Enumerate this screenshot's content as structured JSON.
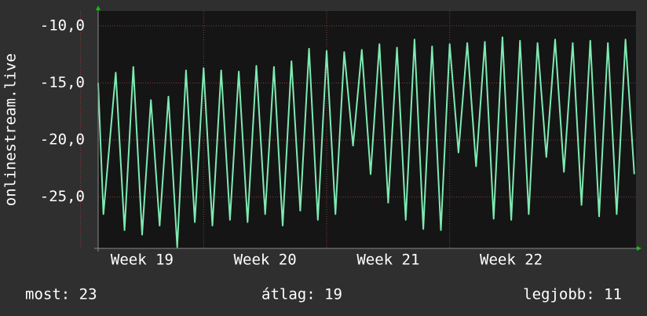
{
  "chart_data": {
    "type": "line",
    "y_label": "onlinestream.live",
    "xlim": [
      0,
      30.6
    ],
    "xticks": [
      {
        "value": 2.5,
        "label": "Week 19"
      },
      {
        "value": 9.5,
        "label": "Week 20"
      },
      {
        "value": 16.5,
        "label": "Week 21"
      },
      {
        "value": 23.5,
        "label": "Week 22"
      }
    ],
    "ylim": [
      -29.5,
      -8.7
    ],
    "yticks": [
      {
        "value": -10,
        "label": "-10,0"
      },
      {
        "value": -15,
        "label": "-15,0"
      },
      {
        "value": -20,
        "label": "-20,0"
      },
      {
        "value": -25,
        "label": "-25,0"
      }
    ],
    "grid": true,
    "color": "#7eeab2",
    "x": [
      0,
      0.3,
      1,
      1.5,
      2,
      2.5,
      3,
      3.5,
      4,
      4.5,
      5,
      5.5,
      6,
      6.5,
      7,
      7.5,
      8,
      8.5,
      9,
      9.5,
      10,
      10.5,
      11,
      11.5,
      12,
      12.5,
      13,
      13.5,
      14,
      14.5,
      15,
      15.5,
      16,
      16.5,
      17,
      17.5,
      18,
      18.5,
      19,
      19.5,
      20,
      20.5,
      21,
      21.5,
      22,
      22.5,
      23,
      23.5,
      24,
      24.5,
      25,
      25.5,
      26,
      26.5,
      27,
      27.5,
      28,
      28.5,
      29,
      29.5,
      30,
      30.5
    ],
    "values": [
      -15,
      -26.5,
      -14.1,
      -27.9,
      -13.6,
      -28.3,
      -16.5,
      -27.5,
      -16.2,
      -29.4,
      -13.9,
      -27.2,
      -13.7,
      -27.5,
      -13.9,
      -27.0,
      -14.0,
      -27.2,
      -13.5,
      -26.5,
      -13.6,
      -27.5,
      -13.1,
      -26.2,
      -12.0,
      -27.0,
      -12.2,
      -26.5,
      -12.3,
      -20.5,
      -12.1,
      -23.0,
      -11.6,
      -25.5,
      -11.9,
      -27.0,
      -11.2,
      -27.8,
      -11.8,
      -27.9,
      -11.6,
      -21.1,
      -11.5,
      -22.3,
      -11.4,
      -26.9,
      -11.0,
      -27.0,
      -11.3,
      -26.5,
      -11.5,
      -21.5,
      -11.2,
      -22.8,
      -11.5,
      -25.7,
      -11.3,
      -26.7,
      -11.5,
      -26.5,
      -11.2,
      -23.0
    ]
  },
  "footer": {
    "current": "most: 23",
    "average": "átlag: 19",
    "best": "legjobb: 11"
  }
}
